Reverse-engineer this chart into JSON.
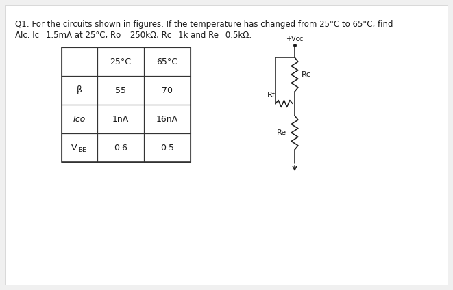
{
  "page_bg": "#f0f0f0",
  "text_color": "#1a1a1a",
  "title_line1": "Q1: For the circuits shown in figures. If the temperature has changed from 25°C to 65°C, find",
  "title_line2": "AIc. Ic=1.5mA at 25°C, Rᴏ =250kΩ, Rᴄ=1k and Re=0.5kΩ.",
  "table_headers": [
    "",
    "25°C",
    "65°C"
  ],
  "table_rows": [
    [
      "β",
      "55",
      "70"
    ],
    [
      "Ico",
      "1nA",
      "16nA"
    ],
    [
      "VBE",
      "0.6",
      "0.5"
    ]
  ],
  "font_size_title": 8.5,
  "font_size_table": 9.0,
  "circuit_color": "#1a1a1a"
}
